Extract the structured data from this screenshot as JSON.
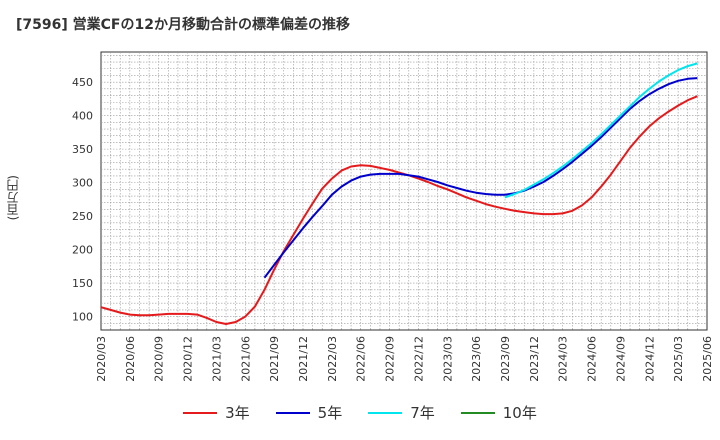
{
  "title": "[7596]  営業CFの12か月移動合計の標準偏差の推移",
  "chart_data": {
    "type": "line",
    "title": "[7596]  営業CFの12か月移動合計の標準偏差の推移",
    "xlabel": "",
    "ylabel": "(百万円)",
    "ylim": [
      80,
      495
    ],
    "yticks": [
      100,
      150,
      200,
      250,
      300,
      350,
      400,
      450
    ],
    "xticks": [
      "2020/03",
      "2020/06",
      "2020/09",
      "2020/12",
      "2021/03",
      "2021/06",
      "2021/09",
      "2021/12",
      "2022/03",
      "2022/06",
      "2022/09",
      "2022/12",
      "2023/03",
      "2023/06",
      "2023/09",
      "2023/12",
      "2024/03",
      "2024/06",
      "2024/09",
      "2024/12",
      "2025/03",
      "2025/06"
    ],
    "grid": true,
    "legend_position": "bottom",
    "series": [
      {
        "name": "3年",
        "color": "#e41a1c",
        "points": [
          [
            "2020/03",
            114
          ],
          [
            "2020/04",
            110
          ],
          [
            "2020/05",
            106
          ],
          [
            "2020/06",
            103
          ],
          [
            "2020/07",
            102
          ],
          [
            "2020/08",
            102
          ],
          [
            "2020/09",
            103
          ],
          [
            "2020/10",
            104
          ],
          [
            "2020/11",
            104
          ],
          [
            "2020/12",
            104
          ],
          [
            "2021/01",
            103
          ],
          [
            "2021/02",
            98
          ],
          [
            "2021/03",
            92
          ],
          [
            "2021/04",
            89
          ],
          [
            "2021/05",
            92
          ],
          [
            "2021/06",
            100
          ],
          [
            "2021/07",
            115
          ],
          [
            "2021/08",
            140
          ],
          [
            "2021/09",
            170
          ],
          [
            "2021/10",
            198
          ],
          [
            "2021/11",
            222
          ],
          [
            "2021/12",
            246
          ],
          [
            "2022/01",
            269
          ],
          [
            "2022/02",
            291
          ],
          [
            "2022/03",
            306
          ],
          [
            "2022/04",
            318
          ],
          [
            "2022/05",
            324
          ],
          [
            "2022/06",
            326
          ],
          [
            "2022/07",
            325
          ],
          [
            "2022/08",
            322
          ],
          [
            "2022/09",
            319
          ],
          [
            "2022/10",
            315
          ],
          [
            "2022/11",
            311
          ],
          [
            "2022/12",
            306
          ],
          [
            "2023/01",
            301
          ],
          [
            "2023/02",
            295
          ],
          [
            "2023/03",
            290
          ],
          [
            "2023/04",
            284
          ],
          [
            "2023/05",
            278
          ],
          [
            "2023/06",
            273
          ],
          [
            "2023/07",
            268
          ],
          [
            "2023/08",
            264
          ],
          [
            "2023/09",
            261
          ],
          [
            "2023/10",
            258
          ],
          [
            "2023/11",
            256
          ],
          [
            "2023/12",
            254
          ],
          [
            "2024/01",
            253
          ],
          [
            "2024/02",
            253
          ],
          [
            "2024/03",
            254
          ],
          [
            "2024/04",
            258
          ],
          [
            "2024/05",
            266
          ],
          [
            "2024/06",
            278
          ],
          [
            "2024/07",
            294
          ],
          [
            "2024/08",
            312
          ],
          [
            "2024/09",
            332
          ],
          [
            "2024/10",
            352
          ],
          [
            "2024/11",
            369
          ],
          [
            "2024/12",
            384
          ],
          [
            "2025/01",
            396
          ],
          [
            "2025/02",
            406
          ],
          [
            "2025/03",
            415
          ],
          [
            "2025/04",
            423
          ],
          [
            "2025/05",
            429
          ]
        ]
      },
      {
        "name": "5年",
        "color": "#0000cc",
        "points": [
          [
            "2021/08",
            158
          ],
          [
            "2021/09",
            177
          ],
          [
            "2021/10",
            196
          ],
          [
            "2021/11",
            214
          ],
          [
            "2021/12",
            232
          ],
          [
            "2022/01",
            249
          ],
          [
            "2022/02",
            265
          ],
          [
            "2022/03",
            282
          ],
          [
            "2022/04",
            294
          ],
          [
            "2022/05",
            303
          ],
          [
            "2022/06",
            309
          ],
          [
            "2022/07",
            312
          ],
          [
            "2022/08",
            313
          ],
          [
            "2022/09",
            313
          ],
          [
            "2022/10",
            313
          ],
          [
            "2022/11",
            311
          ],
          [
            "2022/12",
            309
          ],
          [
            "2023/01",
            305
          ],
          [
            "2023/02",
            301
          ],
          [
            "2023/03",
            296
          ],
          [
            "2023/04",
            292
          ],
          [
            "2023/05",
            288
          ],
          [
            "2023/06",
            285
          ],
          [
            "2023/07",
            283
          ],
          [
            "2023/08",
            282
          ],
          [
            "2023/09",
            282
          ],
          [
            "2023/10",
            284
          ],
          [
            "2023/11",
            288
          ],
          [
            "2023/12",
            294
          ],
          [
            "2024/01",
            301
          ],
          [
            "2024/02",
            310
          ],
          [
            "2024/03",
            320
          ],
          [
            "2024/04",
            331
          ],
          [
            "2024/05",
            343
          ],
          [
            "2024/06",
            355
          ],
          [
            "2024/07",
            368
          ],
          [
            "2024/08",
            382
          ],
          [
            "2024/09",
            396
          ],
          [
            "2024/10",
            410
          ],
          [
            "2024/11",
            422
          ],
          [
            "2024/12",
            432
          ],
          [
            "2025/01",
            440
          ],
          [
            "2025/02",
            447
          ],
          [
            "2025/03",
            452
          ],
          [
            "2025/04",
            455
          ],
          [
            "2025/05",
            456
          ]
        ]
      },
      {
        "name": "7年",
        "color": "#00e5ee",
        "points": [
          [
            "2023/09",
            278
          ],
          [
            "2023/10",
            283
          ],
          [
            "2023/11",
            289
          ],
          [
            "2023/12",
            297
          ],
          [
            "2024/01",
            305
          ],
          [
            "2024/02",
            314
          ],
          [
            "2024/03",
            324
          ],
          [
            "2024/04",
            335
          ],
          [
            "2024/05",
            347
          ],
          [
            "2024/06",
            359
          ],
          [
            "2024/07",
            372
          ],
          [
            "2024/08",
            386
          ],
          [
            "2024/09",
            400
          ],
          [
            "2024/10",
            414
          ],
          [
            "2024/11",
            428
          ],
          [
            "2024/12",
            440
          ],
          [
            "2025/01",
            451
          ],
          [
            "2025/02",
            460
          ],
          [
            "2025/03",
            468
          ],
          [
            "2025/04",
            474
          ],
          [
            "2025/05",
            478
          ]
        ]
      },
      {
        "name": "10年",
        "color": "#228b22",
        "points": []
      }
    ]
  }
}
